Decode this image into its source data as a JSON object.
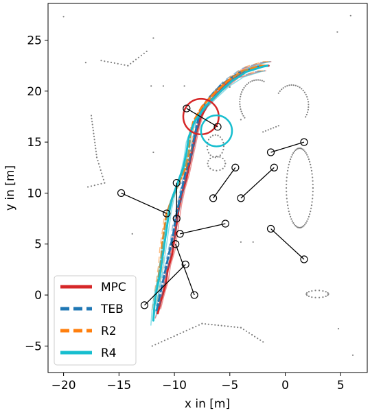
{
  "chart_data": {
    "type": "line",
    "xlabel": "x in [m]",
    "ylabel": "y in [m]",
    "xlim": [
      -21.4,
      7.4
    ],
    "ylim": [
      -7.6,
      28.6
    ],
    "xticks": [
      -20,
      -15,
      -10,
      -5,
      0,
      5
    ],
    "yticks": [
      -5,
      0,
      5,
      10,
      15,
      20,
      25
    ],
    "xtick_labels": [
      "−20",
      "−15",
      "−10",
      "−5",
      "0",
      "5"
    ],
    "ytick_labels": [
      "−5",
      "0",
      "5",
      "10",
      "15",
      "20",
      "25"
    ],
    "legend_placement": "lower-left",
    "series": [
      {
        "name": "MPC",
        "color": "#d62728",
        "linestyle": "solid",
        "points": [
          [
            -11.5,
            -1.8
          ],
          [
            -11.2,
            -0.5
          ],
          [
            -10.8,
            1.0
          ],
          [
            -10.6,
            2.5
          ],
          [
            -10.2,
            4.0
          ],
          [
            -10.0,
            5.5
          ],
          [
            -9.8,
            7.0
          ],
          [
            -9.6,
            8.5
          ],
          [
            -9.3,
            10.0
          ],
          [
            -8.9,
            11.5
          ],
          [
            -8.6,
            13.0
          ],
          [
            -8.3,
            14.5
          ],
          [
            -8.0,
            16.0
          ],
          [
            -7.6,
            17.5
          ],
          [
            -6.8,
            19.0
          ],
          [
            -5.5,
            20.5
          ],
          [
            -4.0,
            21.8
          ],
          [
            -2.2,
            22.4
          ],
          [
            -1.5,
            22.5
          ]
        ]
      },
      {
        "name": "TEB",
        "color": "#1f77b4",
        "linestyle": "dashed",
        "points": [
          [
            -11.6,
            -1.5
          ],
          [
            -11.3,
            0.0
          ],
          [
            -11.0,
            1.5
          ],
          [
            -10.7,
            3.0
          ],
          [
            -10.4,
            4.5
          ],
          [
            -10.1,
            6.0
          ],
          [
            -9.9,
            7.5
          ],
          [
            -9.6,
            9.0
          ],
          [
            -9.3,
            10.5
          ],
          [
            -9.0,
            12.0
          ],
          [
            -8.6,
            13.5
          ],
          [
            -8.3,
            15.0
          ],
          [
            -8.0,
            16.5
          ],
          [
            -7.7,
            18.0
          ],
          [
            -7.0,
            19.2
          ],
          [
            -5.8,
            20.6
          ],
          [
            -4.2,
            21.8
          ],
          [
            -2.5,
            22.4
          ],
          [
            -1.6,
            22.5
          ]
        ]
      },
      {
        "name": "R2",
        "color": "#ff7f0e",
        "linestyle": "dashed",
        "points": [
          [
            -11.8,
            -1.0
          ],
          [
            -11.6,
            0.5
          ],
          [
            -11.4,
            2.0
          ],
          [
            -11.2,
            3.5
          ],
          [
            -11.1,
            5.0
          ],
          [
            -10.9,
            6.5
          ],
          [
            -10.7,
            8.0
          ],
          [
            -10.2,
            9.5
          ],
          [
            -9.6,
            11.0
          ],
          [
            -9.0,
            12.5
          ],
          [
            -8.7,
            14.0
          ],
          [
            -8.6,
            15.5
          ],
          [
            -8.3,
            17.0
          ],
          [
            -7.5,
            18.5
          ],
          [
            -6.4,
            19.8
          ],
          [
            -5.2,
            21.0
          ],
          [
            -3.8,
            22.0
          ],
          [
            -2.2,
            22.5
          ],
          [
            -1.6,
            22.5
          ]
        ]
      },
      {
        "name": "R4",
        "color": "#17becf",
        "linestyle": "solid",
        "points": [
          [
            -11.9,
            -2.5
          ],
          [
            -11.8,
            -1.0
          ],
          [
            -11.6,
            0.5
          ],
          [
            -11.3,
            2.0
          ],
          [
            -11.1,
            3.5
          ],
          [
            -10.9,
            5.0
          ],
          [
            -10.7,
            6.5
          ],
          [
            -10.5,
            8.0
          ],
          [
            -10.2,
            9.5
          ],
          [
            -9.7,
            11.0
          ],
          [
            -9.2,
            12.5
          ],
          [
            -8.9,
            14.0
          ],
          [
            -8.7,
            15.5
          ],
          [
            -8.2,
            17.0
          ],
          [
            -7.2,
            18.5
          ],
          [
            -6.0,
            19.8
          ],
          [
            -4.8,
            21.0
          ],
          [
            -3.5,
            21.9
          ],
          [
            -2.0,
            22.4
          ],
          [
            -1.6,
            22.5
          ]
        ]
      }
    ],
    "obstacle_segments": [
      [
        [
          -8.9,
          18.3
        ],
        [
          -6.1,
          16.5
        ]
      ],
      [
        [
          -14.8,
          10.0
        ],
        [
          -10.7,
          8.0
        ]
      ],
      [
        [
          -9.8,
          11.0
        ],
        [
          -9.8,
          7.5
        ]
      ],
      [
        [
          -6.5,
          9.5
        ],
        [
          -4.5,
          12.5
        ]
      ],
      [
        [
          -4.0,
          9.5
        ],
        [
          -1.0,
          12.5
        ]
      ],
      [
        [
          -1.3,
          14.0
        ],
        [
          1.7,
          15.0
        ]
      ],
      [
        [
          -9.5,
          6.0
        ],
        [
          -5.4,
          7.0
        ]
      ],
      [
        [
          -9.9,
          5.0
        ],
        [
          -8.2,
          0.0
        ]
      ],
      [
        [
          -12.7,
          -1.0
        ],
        [
          -9.0,
          3.0
        ]
      ],
      [
        [
          -1.3,
          6.5
        ],
        [
          1.7,
          3.5
        ]
      ]
    ],
    "circles": [
      {
        "center": [
          -7.6,
          17.5
        ],
        "radius": 1.6,
        "color": "#d62728"
      },
      {
        "center": [
          -6.2,
          16.1
        ],
        "radius": 1.4,
        "color": "#17becf"
      }
    ]
  }
}
